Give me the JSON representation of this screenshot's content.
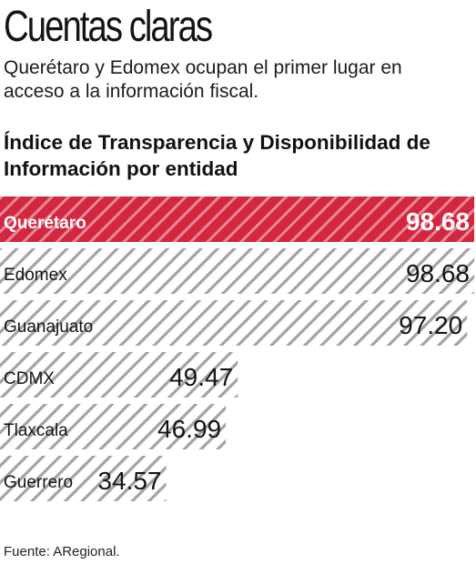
{
  "header": {
    "title": "Cuentas claras",
    "subtitle": "Querétaro y Edomex ocupan el primer lugar en acceso a la información fiscal."
  },
  "source": "Fuente: ARegional.",
  "colors": {
    "highlight": "#d3263f",
    "stripe": "#a3a3a3",
    "text": "#151515"
  },
  "chart_data": {
    "type": "bar",
    "orientation": "horizontal",
    "title": "Índice de Transparencia y Disponibilidad de Información por entidad",
    "categories": [
      "Querétaro",
      "Edomex",
      "Guanajuato",
      "CDMX",
      "Tlaxcala",
      "Guerrero"
    ],
    "values": [
      98.68,
      98.68,
      97.2,
      49.47,
      46.99,
      34.57
    ],
    "value_labels": [
      "98.68",
      "98.68",
      "97.20",
      "49.47",
      "46.99",
      "34.57"
    ],
    "highlight": "Querétaro",
    "xlim": [
      0,
      100
    ],
    "grid": false,
    "bar_fill": "diagonal-stripes"
  }
}
